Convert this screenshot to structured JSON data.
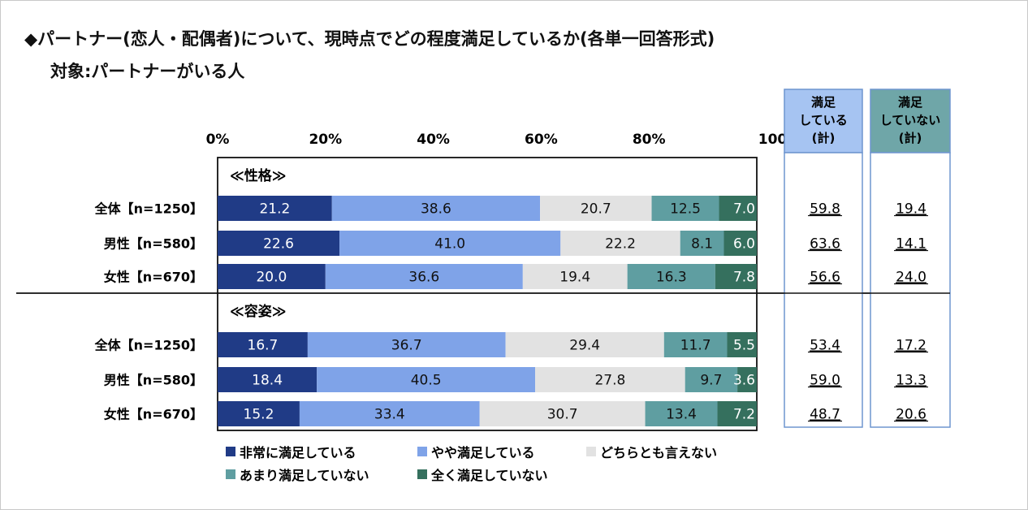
{
  "title": "◆パートナー(恋人・配偶者)について、現時点でどの程度満足しているか(各単一回答形式)",
  "subtitle": "対象:パートナーがいる人",
  "summary_headers": {
    "satisfied": [
      "満足",
      "している",
      "(計)"
    ],
    "not_satisfied": [
      "満足",
      "していない",
      "(計)"
    ]
  },
  "colors": {
    "very_satisfied": "#203b86",
    "somewhat_satisfied": "#7fa3e8",
    "neither": "#e2e2e2",
    "not_very": "#5f9ea1",
    "not_at_all": "#35705e",
    "summary_border": "#6f95cf",
    "header_sat_bg": "#a6c4f2",
    "header_not_bg": "#6fa6a8"
  },
  "chart_data": {
    "type": "bar",
    "orientation": "horizontal-stacked-100",
    "xlim": [
      0,
      100
    ],
    "x_ticks": [
      "0%",
      "20%",
      "40%",
      "60%",
      "80%",
      "100%"
    ],
    "series": [
      {
        "name": "非常に満足している"
      },
      {
        "name": "やや満足している"
      },
      {
        "name": "どちらとも言えない"
      },
      {
        "name": "あまり満足していない"
      },
      {
        "name": "全く満足していない"
      }
    ],
    "groups": [
      {
        "label": "≪性格≫",
        "rows": [
          {
            "label": "全体【n=1250】",
            "values": [
              21.2,
              38.6,
              20.7,
              12.5,
              7.0
            ],
            "value_labels": [
              "21.2",
              "38.6",
              "20.7",
              "12.5",
              "7.0"
            ],
            "satisfied": "59.8",
            "not_satisfied": "19.4"
          },
          {
            "label": "男性【n=580】",
            "values": [
              22.6,
              41.0,
              22.2,
              8.1,
              6.0
            ],
            "value_labels": [
              "22.6",
              "41.0",
              "22.2",
              "8.1",
              "6.0"
            ],
            "satisfied": "63.6",
            "not_satisfied": "14.1"
          },
          {
            "label": "女性【n=670】",
            "values": [
              20.0,
              36.6,
              19.4,
              16.3,
              7.8
            ],
            "value_labels": [
              "20.0",
              "36.6",
              "19.4",
              "16.3",
              "7.8"
            ],
            "satisfied": "56.6",
            "not_satisfied": "24.0"
          }
        ]
      },
      {
        "label": "≪容姿≫",
        "rows": [
          {
            "label": "全体【n=1250】",
            "values": [
              16.7,
              36.7,
              29.4,
              11.7,
              5.5
            ],
            "value_labels": [
              "16.7",
              "36.7",
              "29.4",
              "11.7",
              "5.5"
            ],
            "satisfied": "53.4",
            "not_satisfied": "17.2"
          },
          {
            "label": "男性【n=580】",
            "values": [
              18.4,
              40.5,
              27.8,
              9.7,
              3.6
            ],
            "value_labels": [
              "18.4",
              "40.5",
              "27.8",
              "9.7",
              "3.6"
            ],
            "satisfied": "59.0",
            "not_satisfied": "13.3"
          },
          {
            "label": "女性【n=670】",
            "values": [
              15.2,
              33.4,
              30.7,
              13.4,
              7.2
            ],
            "value_labels": [
              "15.2",
              "33.4",
              "30.7",
              "13.4",
              "7.2"
            ],
            "satisfied": "48.7",
            "not_satisfied": "20.6"
          }
        ]
      }
    ]
  }
}
